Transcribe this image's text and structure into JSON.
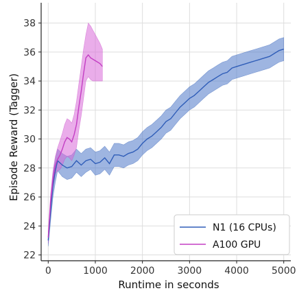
{
  "chart_data": {
    "type": "line",
    "xlabel": "Runtime in seconds",
    "ylabel": "Episode Reward (Tagger)",
    "xlim": [
      -150,
      5150
    ],
    "ylim": [
      21.6,
      39.4
    ],
    "xticks": [
      0,
      1000,
      2000,
      3000,
      4000,
      5000
    ],
    "yticks": [
      22,
      24,
      26,
      28,
      30,
      32,
      34,
      36,
      38
    ],
    "grid": true,
    "legend_position": "bottom-right",
    "series": [
      {
        "name": "N1 (16 CPUs)",
        "color": "#2f5db8",
        "band_color": "#4f79c9",
        "x": [
          0,
          50,
          100,
          150,
          200,
          300,
          400,
          500,
          600,
          700,
          800,
          900,
          1000,
          1100,
          1200,
          1300,
          1400,
          1500,
          1600,
          1700,
          1800,
          1900,
          2000,
          2100,
          2200,
          2300,
          2400,
          2500,
          2600,
          2700,
          2800,
          2900,
          3000,
          3100,
          3200,
          3300,
          3400,
          3500,
          3600,
          3700,
          3800,
          3900,
          4000,
          4100,
          4200,
          4300,
          4400,
          4500,
          4600,
          4700,
          4800,
          4900,
          5000
        ],
        "y": [
          23.0,
          25.0,
          26.8,
          27.8,
          28.5,
          28.2,
          28.0,
          28.1,
          28.5,
          28.2,
          28.5,
          28.6,
          28.3,
          28.4,
          28.7,
          28.3,
          28.9,
          28.9,
          28.8,
          29.0,
          29.1,
          29.3,
          29.7,
          30.0,
          30.2,
          30.5,
          30.8,
          31.2,
          31.4,
          31.8,
          32.2,
          32.5,
          32.8,
          33.0,
          33.3,
          33.6,
          33.9,
          34.1,
          34.3,
          34.5,
          34.6,
          34.9,
          35.0,
          35.1,
          35.2,
          35.3,
          35.4,
          35.5,
          35.6,
          35.7,
          35.9,
          36.1,
          36.2
        ],
        "lower": [
          22.6,
          24.3,
          26.0,
          27.0,
          27.8,
          27.4,
          27.2,
          27.3,
          27.7,
          27.4,
          27.7,
          27.9,
          27.5,
          27.6,
          27.9,
          27.5,
          28.1,
          28.1,
          28.0,
          28.2,
          28.3,
          28.5,
          28.9,
          29.2,
          29.4,
          29.7,
          30.0,
          30.4,
          30.6,
          31.0,
          31.4,
          31.7,
          32.0,
          32.2,
          32.5,
          32.8,
          33.1,
          33.3,
          33.5,
          33.7,
          33.8,
          34.1,
          34.2,
          34.3,
          34.4,
          34.5,
          34.6,
          34.7,
          34.8,
          34.9,
          35.1,
          35.3,
          35.4
        ],
        "upper": [
          23.4,
          25.7,
          27.6,
          28.6,
          29.3,
          29.0,
          28.8,
          28.9,
          29.3,
          29.0,
          29.3,
          29.4,
          29.1,
          29.2,
          29.5,
          29.1,
          29.7,
          29.7,
          29.6,
          29.8,
          29.9,
          30.1,
          30.5,
          30.8,
          31.0,
          31.3,
          31.6,
          32.0,
          32.2,
          32.6,
          33.0,
          33.3,
          33.6,
          33.8,
          34.1,
          34.4,
          34.7,
          34.9,
          35.1,
          35.3,
          35.4,
          35.7,
          35.8,
          35.9,
          36.0,
          36.1,
          36.2,
          36.3,
          36.4,
          36.5,
          36.7,
          36.9,
          37.0
        ]
      },
      {
        "name": "A100 GPU",
        "color": "#c33ec3",
        "band_color": "#d96ad9",
        "x": [
          0,
          50,
          100,
          150,
          200,
          250,
          300,
          350,
          400,
          450,
          500,
          550,
          600,
          650,
          700,
          750,
          800,
          850,
          900,
          950,
          1000,
          1100,
          1150
        ],
        "y": [
          23.2,
          25.6,
          27.2,
          28.2,
          28.6,
          28.9,
          29.3,
          29.8,
          30.1,
          30.0,
          29.8,
          30.3,
          31.0,
          32.2,
          33.3,
          34.5,
          35.6,
          35.8,
          35.6,
          35.5,
          35.4,
          35.2,
          35.0
        ],
        "lower": [
          22.8,
          25.0,
          26.6,
          27.6,
          27.8,
          27.9,
          28.2,
          28.6,
          28.8,
          28.7,
          28.5,
          28.9,
          29.4,
          30.6,
          31.6,
          32.8,
          34.0,
          34.3,
          34.1,
          34.0,
          34.0,
          34.0,
          34.0
        ],
        "upper": [
          23.6,
          26.2,
          27.8,
          28.8,
          29.4,
          29.9,
          30.4,
          31.0,
          31.4,
          31.3,
          31.1,
          31.7,
          32.6,
          33.8,
          35.0,
          36.2,
          37.2,
          38.0,
          37.8,
          37.5,
          37.2,
          36.6,
          36.2
        ]
      }
    ]
  }
}
